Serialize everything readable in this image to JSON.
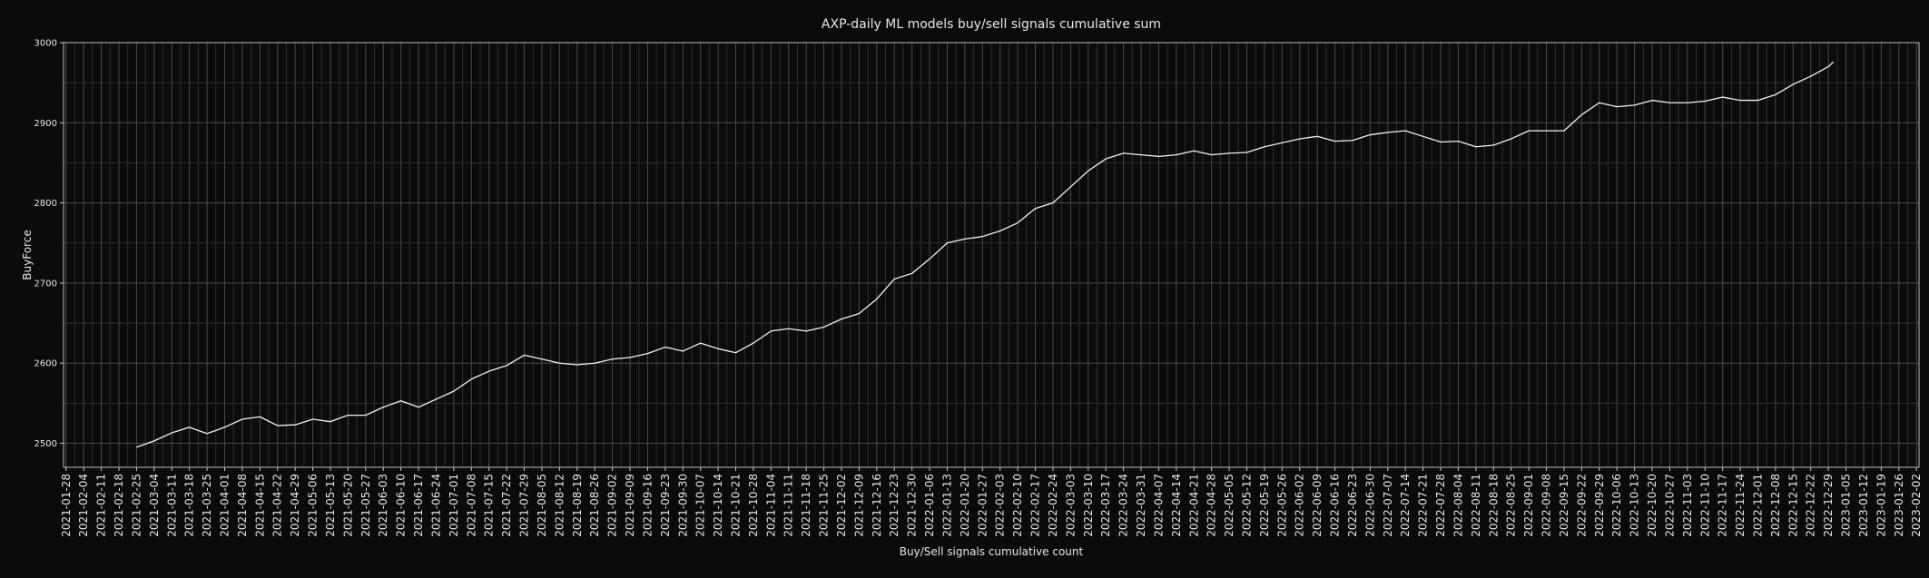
{
  "chart_data": {
    "type": "line",
    "title": "AXP-daily ML models buy/sell signals cumulative sum",
    "x_label": "Buy/Sell signals cumulative count",
    "y_label": "BuyForce",
    "grid": true,
    "xlim": [
      "2021-01-27",
      "2023-02-03"
    ],
    "ylim": [
      2470,
      3000
    ],
    "yticks": [
      2500,
      2600,
      2700,
      2800,
      2900,
      3000
    ],
    "xticks": [
      "2021-01-28",
      "2021-02-04",
      "2021-02-11",
      "2021-02-18",
      "2021-02-25",
      "2021-03-04",
      "2021-03-11",
      "2021-03-18",
      "2021-03-25",
      "2021-04-01",
      "2021-04-08",
      "2021-04-15",
      "2021-04-22",
      "2021-04-29",
      "2021-05-06",
      "2021-05-13",
      "2021-05-20",
      "2021-05-27",
      "2021-06-03",
      "2021-06-10",
      "2021-06-17",
      "2021-06-24",
      "2021-07-01",
      "2021-07-08",
      "2021-07-15",
      "2021-07-22",
      "2021-07-29",
      "2021-08-05",
      "2021-08-12",
      "2021-08-19",
      "2021-08-26",
      "2021-09-02",
      "2021-09-09",
      "2021-09-16",
      "2021-09-23",
      "2021-09-30",
      "2021-10-07",
      "2021-10-14",
      "2021-10-21",
      "2021-10-28",
      "2021-11-04",
      "2021-11-11",
      "2021-11-18",
      "2021-11-25",
      "2021-12-02",
      "2021-12-09",
      "2021-12-16",
      "2021-12-23",
      "2021-12-30",
      "2022-01-06",
      "2022-01-13",
      "2022-01-20",
      "2022-01-27",
      "2022-02-03",
      "2022-02-10",
      "2022-02-17",
      "2022-02-24",
      "2022-03-03",
      "2022-03-10",
      "2022-03-17",
      "2022-03-24",
      "2022-03-31",
      "2022-04-07",
      "2022-04-14",
      "2022-04-21",
      "2022-04-28",
      "2022-05-05",
      "2022-05-12",
      "2022-05-19",
      "2022-05-26",
      "2022-06-02",
      "2022-06-09",
      "2022-06-16",
      "2022-06-23",
      "2022-06-30",
      "2022-07-07",
      "2022-07-14",
      "2022-07-21",
      "2022-07-28",
      "2022-08-04",
      "2022-08-11",
      "2022-08-18",
      "2022-08-25",
      "2022-09-01",
      "2022-09-08",
      "2022-09-15",
      "2022-09-22",
      "2022-09-29",
      "2022-10-06",
      "2022-10-13",
      "2022-10-20",
      "2022-10-27",
      "2022-11-03",
      "2022-11-10",
      "2022-11-17",
      "2022-11-24",
      "2022-12-01",
      "2022-12-08",
      "2022-12-15",
      "2022-12-22",
      "2022-12-29",
      "2023-01-05",
      "2023-01-12",
      "2023-01-19",
      "2023-01-26",
      "2023-02-02"
    ],
    "x": [
      "2021-02-25",
      "2021-03-04",
      "2021-03-11",
      "2021-03-18",
      "2021-03-25",
      "2021-04-01",
      "2021-04-08",
      "2021-04-15",
      "2021-04-22",
      "2021-04-29",
      "2021-05-06",
      "2021-05-13",
      "2021-05-20",
      "2021-05-27",
      "2021-06-03",
      "2021-06-10",
      "2021-06-17",
      "2021-06-24",
      "2021-07-01",
      "2021-07-08",
      "2021-07-15",
      "2021-07-22",
      "2021-07-29",
      "2021-08-05",
      "2021-08-12",
      "2021-08-19",
      "2021-08-26",
      "2021-09-02",
      "2021-09-09",
      "2021-09-16",
      "2021-09-23",
      "2021-09-30",
      "2021-10-07",
      "2021-10-14",
      "2021-10-21",
      "2021-10-28",
      "2021-11-04",
      "2021-11-11",
      "2021-11-18",
      "2021-11-25",
      "2021-12-02",
      "2021-12-09",
      "2021-12-16",
      "2021-12-23",
      "2021-12-30",
      "2022-01-06",
      "2022-01-13",
      "2022-01-20",
      "2022-01-27",
      "2022-02-03",
      "2022-02-10",
      "2022-02-17",
      "2022-02-24",
      "2022-03-03",
      "2022-03-10",
      "2022-03-17",
      "2022-03-24",
      "2022-03-31",
      "2022-04-07",
      "2022-04-14",
      "2022-04-21",
      "2022-04-28",
      "2022-05-05",
      "2022-05-12",
      "2022-05-19",
      "2022-05-26",
      "2022-06-02",
      "2022-06-09",
      "2022-06-16",
      "2022-06-23",
      "2022-06-30",
      "2022-07-07",
      "2022-07-14",
      "2022-07-21",
      "2022-07-28",
      "2022-08-04",
      "2022-08-11",
      "2022-08-18",
      "2022-08-25",
      "2022-09-01",
      "2022-09-08",
      "2022-09-15",
      "2022-09-22",
      "2022-09-29",
      "2022-10-06",
      "2022-10-13",
      "2022-10-20",
      "2022-10-27",
      "2022-11-03",
      "2022-11-10",
      "2022-11-17",
      "2022-11-24",
      "2022-12-01",
      "2022-12-08",
      "2022-12-15",
      "2022-12-22",
      "2022-12-29",
      "2022-12-31"
    ],
    "series": [
      {
        "name": "BuyForce",
        "color": "#f2f2f2",
        "values": [
          2495,
          2503,
          2513,
          2520,
          2512,
          2520,
          2530,
          2533,
          2522,
          2523,
          2530,
          2527,
          2535,
          2535,
          2545,
          2553,
          2545,
          2555,
          2565,
          2580,
          2590,
          2597,
          2610,
          2605,
          2600,
          2598,
          2600,
          2605,
          2607,
          2612,
          2620,
          2615,
          2625,
          2618,
          2613,
          2625,
          2640,
          2643,
          2640,
          2645,
          2655,
          2662,
          2680,
          2705,
          2712,
          2730,
          2750,
          2755,
          2758,
          2765,
          2775,
          2793,
          2800,
          2820,
          2840,
          2855,
          2862,
          2860,
          2858,
          2860,
          2865,
          2860,
          2862,
          2863,
          2870,
          2875,
          2880,
          2883,
          2877,
          2878,
          2885,
          2888,
          2890,
          2883,
          2876,
          2877,
          2870,
          2872,
          2880,
          2890,
          2890,
          2890,
          2910,
          2925,
          2920,
          2922,
          2928,
          2925,
          2925,
          2927,
          2932,
          2928,
          2928,
          2935,
          2948,
          2958,
          2970,
          2976
        ]
      }
    ]
  }
}
